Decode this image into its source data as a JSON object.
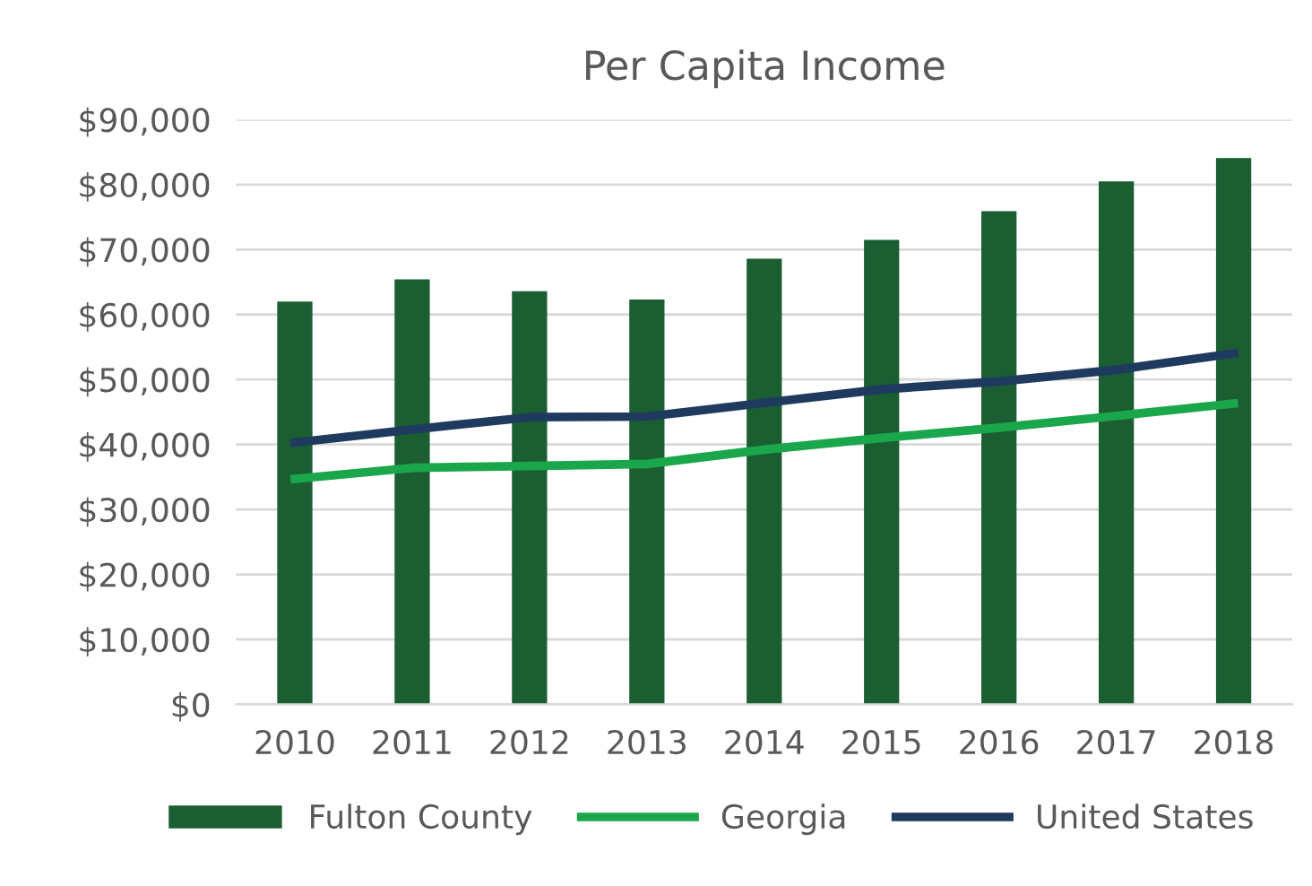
{
  "chart_data": {
    "type": "bar",
    "title": "Per Capita Income",
    "categories": [
      "2010",
      "2011",
      "2012",
      "2013",
      "2014",
      "2015",
      "2016",
      "2017",
      "2018"
    ],
    "series": [
      {
        "name": "Fulton County",
        "color": "#1b5e32",
        "values": [
          62000,
          65400,
          63600,
          62300,
          68600,
          71500,
          75900,
          80500,
          84100
        ]
      },
      {
        "name": "Georgia",
        "type": "line",
        "color": "#1aa64a",
        "values": [
          34700,
          36400,
          36700,
          37000,
          39200,
          41000,
          42600,
          44400,
          46300
        ]
      },
      {
        "name": "United States",
        "type": "line",
        "color": "#1f3a5f",
        "values": [
          40300,
          42300,
          44200,
          44300,
          46400,
          48500,
          49700,
          51500,
          54000
        ]
      }
    ],
    "ylim": [
      0,
      90000
    ],
    "yticks": [
      {
        "value": 0,
        "label": "$0"
      },
      {
        "value": 10000,
        "label": "$10,000"
      },
      {
        "value": 20000,
        "label": "$20,000"
      },
      {
        "value": 30000,
        "label": "$30,000"
      },
      {
        "value": 40000,
        "label": "$40,000"
      },
      {
        "value": 50000,
        "label": "$50,000"
      },
      {
        "value": 60000,
        "label": "$60,000"
      },
      {
        "value": 70000,
        "label": "$70,000"
      },
      {
        "value": 80000,
        "label": "$80,000"
      },
      {
        "value": 90000,
        "label": "$90,000"
      }
    ],
    "grid": "y",
    "legend": "bottom"
  }
}
